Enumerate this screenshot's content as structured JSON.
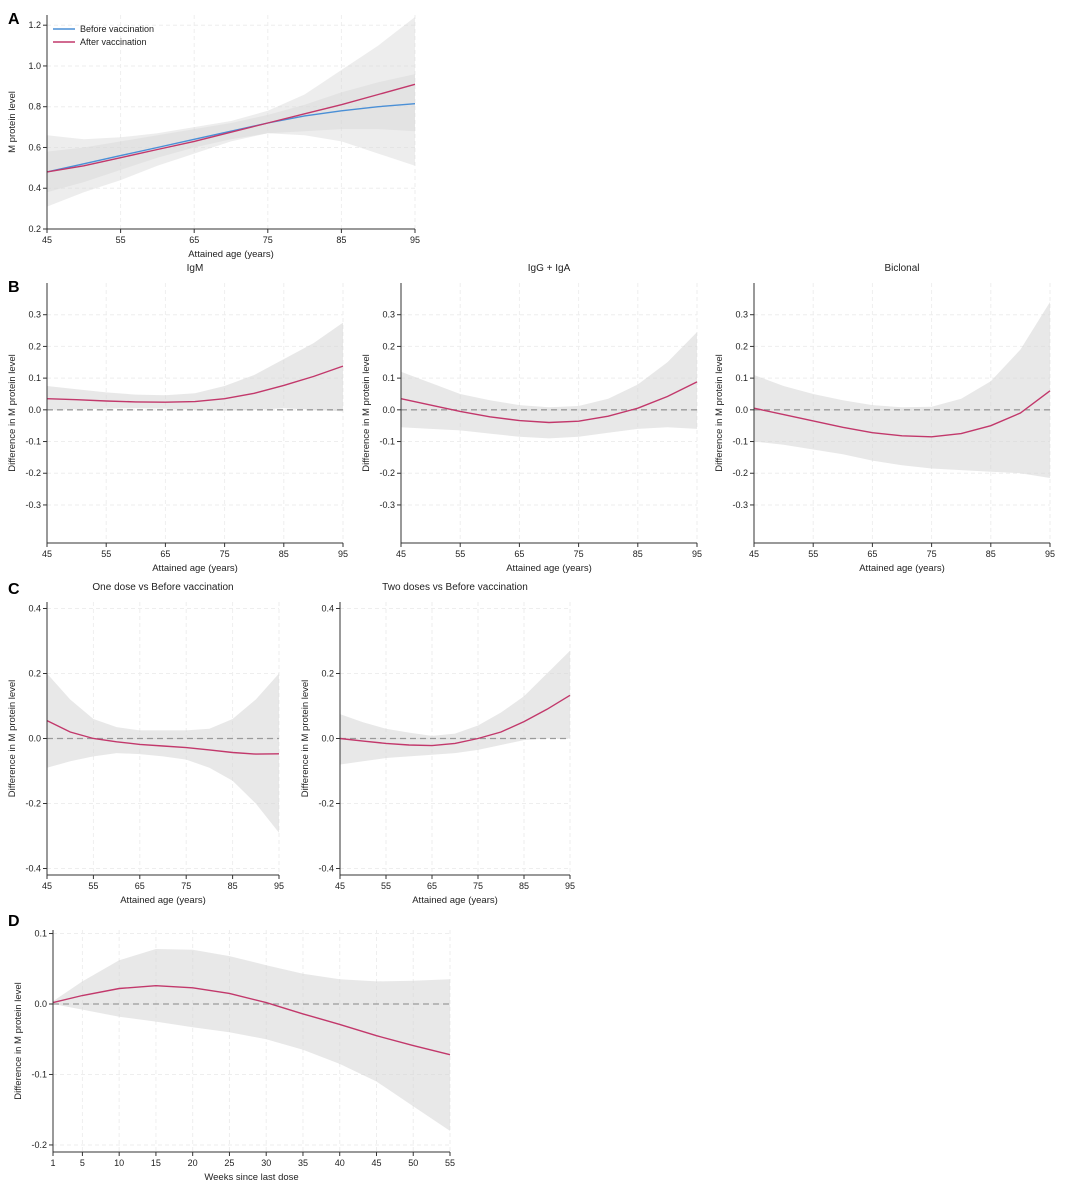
{
  "colors": {
    "before": "#4a8fd6",
    "after": "#c2386b",
    "band": "#d6d6d6",
    "ref": "#9a9a9a"
  },
  "chart_data": [
    {
      "id": "A",
      "panel": "A",
      "type": "line",
      "title": "",
      "xlabel": "Attained age (years)",
      "ylabel": "M protein level",
      "xlim": [
        45,
        95
      ],
      "ylim": [
        0.2,
        1.25
      ],
      "xticks": [
        45,
        55,
        65,
        75,
        85,
        95
      ],
      "yticks": [
        0.2,
        0.4,
        0.6,
        0.8,
        1.0,
        1.2
      ],
      "ytick_labels": [
        "0.2",
        "0.4",
        "0.6",
        "0.8",
        "1.0",
        "1.2"
      ],
      "legend": "top-left",
      "refline": null,
      "series": [
        {
          "name": "Before vaccination",
          "color": "before",
          "x": [
            45,
            50,
            55,
            60,
            65,
            70,
            75,
            80,
            85,
            90,
            95
          ],
          "y": [
            0.48,
            0.52,
            0.56,
            0.6,
            0.64,
            0.68,
            0.72,
            0.755,
            0.78,
            0.8,
            0.815
          ],
          "lower": [
            0.38,
            0.43,
            0.49,
            0.55,
            0.6,
            0.64,
            0.67,
            0.68,
            0.69,
            0.69,
            0.68
          ],
          "upper": [
            0.58,
            0.6,
            0.63,
            0.66,
            0.69,
            0.72,
            0.76,
            0.81,
            0.87,
            0.92,
            0.96
          ]
        },
        {
          "name": "After vaccination",
          "color": "after",
          "x": [
            45,
            50,
            55,
            60,
            65,
            70,
            75,
            80,
            85,
            90,
            95
          ],
          "y": [
            0.48,
            0.51,
            0.55,
            0.59,
            0.63,
            0.675,
            0.72,
            0.765,
            0.81,
            0.86,
            0.91
          ],
          "lower": [
            0.31,
            0.38,
            0.44,
            0.51,
            0.57,
            0.63,
            0.67,
            0.66,
            0.63,
            0.57,
            0.51
          ],
          "upper": [
            0.66,
            0.64,
            0.65,
            0.67,
            0.7,
            0.73,
            0.78,
            0.86,
            0.98,
            1.1,
            1.24
          ]
        }
      ]
    },
    {
      "id": "B1",
      "panel": "B",
      "type": "line",
      "title": "IgM",
      "xlabel": "Attained age (years)",
      "ylabel": "Difference in M protein level",
      "xlim": [
        45,
        95
      ],
      "ylim": [
        -0.42,
        0.4
      ],
      "xticks": [
        45,
        55,
        65,
        75,
        85,
        95
      ],
      "yticks": [
        -0.3,
        -0.2,
        -0.1,
        0.0,
        0.1,
        0.2,
        0.3
      ],
      "ytick_labels": [
        "-0.3",
        "-0.2",
        "-0.1",
        "0.0",
        "0.1",
        "0.2",
        "0.3"
      ],
      "refline": 0,
      "series": [
        {
          "name": "",
          "color": "after",
          "x": [
            45,
            50,
            55,
            60,
            65,
            70,
            75,
            80,
            85,
            90,
            95
          ],
          "y": [
            0.035,
            0.032,
            0.028,
            0.025,
            0.024,
            0.026,
            0.035,
            0.052,
            0.077,
            0.105,
            0.138
          ],
          "lower": [
            0.0,
            0.002,
            0.004,
            0.005,
            0.004,
            0.0,
            -0.003,
            0.0,
            0.005,
            0.0,
            -0.005
          ],
          "upper": [
            0.075,
            0.065,
            0.055,
            0.048,
            0.046,
            0.052,
            0.075,
            0.11,
            0.16,
            0.21,
            0.275
          ]
        }
      ]
    },
    {
      "id": "B2",
      "panel": "B",
      "type": "line",
      "title": "IgG + IgA",
      "xlabel": "Attained age (years)",
      "ylabel": "Difference in M protein level",
      "xlim": [
        45,
        95
      ],
      "ylim": [
        -0.42,
        0.4
      ],
      "xticks": [
        45,
        55,
        65,
        75,
        85,
        95
      ],
      "yticks": [
        -0.3,
        -0.2,
        -0.1,
        0.0,
        0.1,
        0.2,
        0.3
      ],
      "ytick_labels": [
        "-0.3",
        "-0.2",
        "-0.1",
        "0.0",
        "0.1",
        "0.2",
        "0.3"
      ],
      "refline": 0,
      "series": [
        {
          "name": "",
          "color": "after",
          "x": [
            45,
            50,
            55,
            60,
            65,
            70,
            75,
            80,
            85,
            90,
            95
          ],
          "y": [
            0.035,
            0.015,
            -0.005,
            -0.022,
            -0.034,
            -0.04,
            -0.036,
            -0.02,
            0.005,
            0.042,
            0.088
          ],
          "lower": [
            -0.055,
            -0.06,
            -0.065,
            -0.075,
            -0.085,
            -0.09,
            -0.085,
            -0.072,
            -0.06,
            -0.055,
            -0.06
          ],
          "upper": [
            0.12,
            0.085,
            0.05,
            0.03,
            0.015,
            0.008,
            0.012,
            0.035,
            0.08,
            0.15,
            0.245
          ]
        }
      ]
    },
    {
      "id": "B3",
      "panel": "B",
      "type": "line",
      "title": "Biclonal",
      "xlabel": "Attained age (years)",
      "ylabel": "Difference in M protein level",
      "xlim": [
        45,
        95
      ],
      "ylim": [
        -0.42,
        0.4
      ],
      "xticks": [
        45,
        55,
        65,
        75,
        85,
        95
      ],
      "yticks": [
        -0.3,
        -0.2,
        -0.1,
        0.0,
        0.1,
        0.2,
        0.3
      ],
      "ytick_labels": [
        "-0.3",
        "-0.2",
        "-0.1",
        "0.0",
        "0.1",
        "0.2",
        "0.3"
      ],
      "refline": 0,
      "series": [
        {
          "name": "",
          "color": "after",
          "x": [
            45,
            50,
            55,
            60,
            65,
            70,
            75,
            80,
            85,
            90,
            95
          ],
          "y": [
            0.005,
            -0.015,
            -0.035,
            -0.055,
            -0.072,
            -0.082,
            -0.085,
            -0.075,
            -0.05,
            -0.01,
            0.06
          ],
          "lower": [
            -0.1,
            -0.11,
            -0.125,
            -0.14,
            -0.16,
            -0.175,
            -0.185,
            -0.19,
            -0.195,
            -0.2,
            -0.215
          ],
          "upper": [
            0.11,
            0.075,
            0.05,
            0.03,
            0.015,
            0.008,
            0.01,
            0.035,
            0.09,
            0.19,
            0.34
          ]
        }
      ]
    },
    {
      "id": "C1",
      "panel": "C",
      "type": "line",
      "title": "One dose vs Before vaccination",
      "xlabel": "Attained age (years)",
      "ylabel": "Difference in M protein level",
      "xlim": [
        45,
        95
      ],
      "ylim": [
        -0.42,
        0.42
      ],
      "xticks": [
        45,
        55,
        65,
        75,
        85,
        95
      ],
      "yticks": [
        -0.4,
        -0.2,
        0.0,
        0.2,
        0.4
      ],
      "ytick_labels": [
        "-0.4",
        "-0.2",
        "0.0",
        "0.2",
        "0.4"
      ],
      "refline": 0,
      "series": [
        {
          "name": "",
          "color": "after",
          "x": [
            45,
            50,
            55,
            60,
            65,
            70,
            75,
            80,
            85,
            90,
            95
          ],
          "y": [
            0.055,
            0.02,
            0.0,
            -0.01,
            -0.018,
            -0.023,
            -0.028,
            -0.035,
            -0.043,
            -0.048,
            -0.047
          ],
          "lower": [
            -0.09,
            -0.07,
            -0.055,
            -0.045,
            -0.048,
            -0.055,
            -0.065,
            -0.09,
            -0.13,
            -0.2,
            -0.29
          ],
          "upper": [
            0.2,
            0.12,
            0.06,
            0.035,
            0.025,
            0.025,
            0.025,
            0.03,
            0.06,
            0.12,
            0.2
          ]
        }
      ]
    },
    {
      "id": "C2",
      "panel": "C",
      "type": "line",
      "title": "Two doses vs Before vaccination",
      "xlabel": "Attained age (years)",
      "ylabel": "Difference in M protein level",
      "xlim": [
        45,
        95
      ],
      "ylim": [
        -0.42,
        0.42
      ],
      "xticks": [
        45,
        55,
        65,
        75,
        85,
        95
      ],
      "yticks": [
        -0.4,
        -0.2,
        0.0,
        0.2,
        0.4
      ],
      "ytick_labels": [
        "-0.4",
        "-0.2",
        "0.0",
        "0.2",
        "0.4"
      ],
      "refline": 0,
      "series": [
        {
          "name": "",
          "color": "after",
          "x": [
            45,
            50,
            55,
            60,
            65,
            70,
            75,
            80,
            85,
            90,
            95
          ],
          "y": [
            0.0,
            -0.008,
            -0.015,
            -0.02,
            -0.022,
            -0.015,
            0.0,
            0.02,
            0.052,
            0.09,
            0.133
          ],
          "lower": [
            -0.08,
            -0.07,
            -0.06,
            -0.055,
            -0.05,
            -0.045,
            -0.035,
            -0.02,
            -0.005,
            0.0,
            0.0
          ],
          "upper": [
            0.075,
            0.05,
            0.03,
            0.018,
            0.008,
            0.015,
            0.04,
            0.08,
            0.13,
            0.2,
            0.27
          ]
        }
      ]
    },
    {
      "id": "D",
      "panel": "D",
      "type": "line",
      "title": "",
      "xlabel": "Weeks since last dose",
      "ylabel": "Difference in M protein level",
      "xlim": [
        1,
        55
      ],
      "ylim": [
        -0.21,
        0.105
      ],
      "xticks": [
        1,
        5,
        10,
        15,
        20,
        25,
        30,
        35,
        40,
        45,
        50,
        55
      ],
      "yticks": [
        -0.2,
        -0.1,
        0.0,
        0.1
      ],
      "ytick_labels": [
        "-0.2",
        "-0.1",
        "0.0",
        "0.1"
      ],
      "refline": 0,
      "series": [
        {
          "name": "",
          "color": "after",
          "x": [
            1,
            5,
            10,
            15,
            20,
            25,
            30,
            35,
            40,
            45,
            50,
            55
          ],
          "y": [
            0.002,
            0.012,
            0.022,
            0.026,
            0.023,
            0.015,
            0.002,
            -0.014,
            -0.029,
            -0.045,
            -0.059,
            -0.072
          ],
          "lower": [
            0.0,
            -0.008,
            -0.018,
            -0.025,
            -0.033,
            -0.04,
            -0.05,
            -0.065,
            -0.085,
            -0.11,
            -0.145,
            -0.18
          ],
          "upper": [
            0.004,
            0.032,
            0.062,
            0.078,
            0.077,
            0.068,
            0.055,
            0.043,
            0.035,
            0.032,
            0.033,
            0.035
          ]
        }
      ]
    }
  ]
}
